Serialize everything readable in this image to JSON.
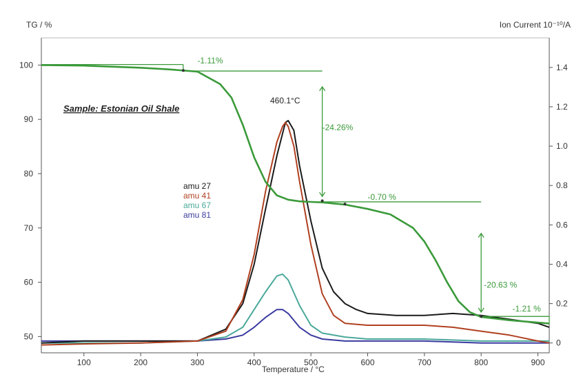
{
  "chart_data": {
    "type": "line",
    "sample_label": "Sample: Estonian Oil Shale",
    "peak_label": "460.1°C",
    "xlabel": "Temperature / °C",
    "ylabel_left": "TG / %",
    "ylabel_right": "Ion Current  10⁻¹⁰/A",
    "x_ticks": [
      "100",
      "200",
      "300",
      "400",
      "500",
      "600",
      "700",
      "800",
      "900"
    ],
    "y_left_ticks": [
      "50",
      "60",
      "70",
      "80",
      "90",
      "100"
    ],
    "y_right_ticks": [
      "0",
      "0.2",
      "0.4",
      "0.6",
      "0.8",
      "1.0",
      "1.2",
      "1.4"
    ],
    "xlim": [
      25,
      920
    ],
    "ylim_left": [
      47,
      105
    ],
    "ylim_right": [
      -0.05,
      1.55
    ],
    "grid": false,
    "annotations": [
      {
        "text": "-1.11%",
        "x": 300,
        "y": 100.3
      },
      {
        "text": "-24.26%",
        "x": 520,
        "y": 88
      },
      {
        "text": "-0.70 %",
        "x": 600,
        "y": 75.2
      },
      {
        "text": "-20.63 %",
        "x": 805,
        "y": 59
      },
      {
        "text": "-1.21 %",
        "x": 855,
        "y": 54.6
      }
    ],
    "colors": {
      "tg": "#3a9a3a",
      "amu27": "#1a1a1a",
      "amu41": "#b04020",
      "amu67": "#4aa89a",
      "amu81": "#3a3aa0"
    },
    "series": [
      {
        "name": "TG",
        "axis": "left",
        "x": [
          25,
          100,
          200,
          250,
          300,
          340,
          360,
          380,
          400,
          420,
          440,
          460,
          480,
          500,
          520,
          560,
          600,
          640,
          680,
          700,
          720,
          740,
          760,
          780,
          800,
          850,
          920
        ],
        "values": [
          100,
          99.9,
          99.5,
          99.2,
          98.8,
          96.5,
          94,
          89,
          83,
          78.5,
          76,
          75.2,
          74.9,
          74.8,
          74.7,
          74.3,
          73.5,
          72.5,
          70,
          67.5,
          64,
          60,
          56.5,
          54.5,
          53.6,
          53,
          52.4
        ]
      },
      {
        "name": "amu 27",
        "axis": "right",
        "x": [
          25,
          100,
          200,
          300,
          350,
          380,
          400,
          420,
          440,
          455,
          460,
          470,
          480,
          500,
          520,
          540,
          560,
          580,
          600,
          650,
          700,
          750,
          800,
          850,
          900,
          920
        ],
        "values": [
          0,
          0.01,
          0.01,
          0.01,
          0.07,
          0.2,
          0.4,
          0.68,
          0.95,
          1.12,
          1.13,
          1.08,
          0.9,
          0.62,
          0.38,
          0.26,
          0.2,
          0.17,
          0.15,
          0.14,
          0.14,
          0.15,
          0.14,
          0.12,
          0.1,
          0.08
        ]
      },
      {
        "name": "amu 41",
        "axis": "right",
        "x": [
          25,
          100,
          200,
          300,
          350,
          380,
          400,
          420,
          440,
          450,
          455,
          460,
          470,
          480,
          500,
          520,
          540,
          560,
          600,
          650,
          700,
          750,
          800,
          850,
          900,
          920
        ],
        "values": [
          -0.01,
          -0.005,
          0.0,
          0.01,
          0.06,
          0.22,
          0.45,
          0.77,
          1.02,
          1.1,
          1.12,
          1.1,
          1.0,
          0.82,
          0.5,
          0.25,
          0.14,
          0.1,
          0.09,
          0.09,
          0.09,
          0.08,
          0.06,
          0.04,
          0.01,
          0.0
        ]
      },
      {
        "name": "amu 67",
        "axis": "right",
        "x": [
          25,
          100,
          200,
          300,
          350,
          380,
          400,
          420,
          440,
          450,
          460,
          480,
          500,
          520,
          560,
          600,
          700,
          800,
          920
        ],
        "values": [
          0,
          0,
          0,
          0.01,
          0.03,
          0.08,
          0.17,
          0.26,
          0.34,
          0.35,
          0.32,
          0.19,
          0.09,
          0.05,
          0.03,
          0.02,
          0.02,
          0.01,
          0.01
        ]
      },
      {
        "name": "amu 81",
        "axis": "right",
        "x": [
          25,
          100,
          200,
          300,
          350,
          380,
          400,
          420,
          440,
          450,
          460,
          480,
          500,
          520,
          560,
          600,
          700,
          800,
          920
        ],
        "values": [
          0.01,
          0.01,
          0.01,
          0.01,
          0.02,
          0.04,
          0.08,
          0.13,
          0.17,
          0.17,
          0.15,
          0.08,
          0.04,
          0.02,
          0.01,
          0.01,
          0.01,
          0.0,
          0.0
        ]
      }
    ]
  }
}
